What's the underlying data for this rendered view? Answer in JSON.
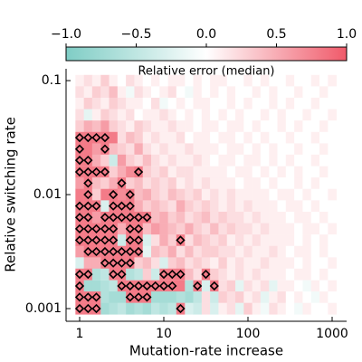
{
  "chart_data": {
    "type": "heatmap",
    "colorbar_label": "Relative error (median)",
    "xlabel": "Mutation-rate increase",
    "ylabel": "Relative switching rate",
    "xscale": "log",
    "yscale": "log",
    "xlim": [
      0.69,
      1486
    ],
    "ylim": [
      0.000774,
      0.127
    ],
    "xticks": [
      1,
      10,
      100,
      1000
    ],
    "yticks": [
      0.001,
      0.01,
      0.1
    ],
    "clim": [
      -1,
      1
    ],
    "cticks": [
      {
        "value": -1,
        "label": "−1.0"
      },
      {
        "value": -0.5,
        "label": "−0.5"
      },
      {
        "value": 0,
        "label": "0.0"
      },
      {
        "value": 0.5,
        "label": "0.5"
      },
      {
        "value": 1,
        "label": "1.0"
      }
    ],
    "colormap": [
      "#7fcdc5",
      "#ffffff",
      "#f05a6a"
    ],
    "x": [
      1,
      1.26,
      1.58,
      2,
      2.51,
      3.16,
      3.98,
      5.01,
      6.31,
      7.94,
      10,
      12.6,
      15.8,
      20,
      25.1,
      31.6,
      39.8,
      50.1,
      63.1,
      79.4,
      100,
      126,
      158,
      200,
      251,
      316,
      398,
      501,
      631,
      794,
      1000
    ],
    "y": [
      0.1,
      0.0794,
      0.0631,
      0.0501,
      0.0398,
      0.0316,
      0.0251,
      0.02,
      0.0158,
      0.0126,
      0.01,
      0.00794,
      0.00631,
      0.00501,
      0.00398,
      0.00316,
      0.00251,
      0.002,
      0.00158,
      0.00126,
      0.001
    ],
    "z": [
      [
        0.1,
        0.2,
        0.1,
        0.3,
        0.1,
        0,
        0.2,
        0.1,
        0,
        0.1,
        0,
        0.1,
        0.1,
        0,
        0.1,
        0,
        0.1,
        0.1,
        0,
        0,
        0.1,
        0,
        0.1,
        0,
        0,
        0.1,
        0,
        0,
        0.1,
        0,
        0.1
      ],
      [
        0.2,
        0.1,
        0.3,
        0.2,
        0.4,
        0.1,
        -0.1,
        0.2,
        0.1,
        0,
        0.1,
        0.2,
        0,
        -0.1,
        0.1,
        0,
        0.1,
        0,
        0.1,
        0,
        0,
        0.1,
        0,
        0.1,
        0,
        0,
        0.1,
        0,
        0,
        0.1,
        0
      ],
      [
        0.1,
        0.3,
        0.2,
        0.1,
        0.3,
        0.2,
        0.1,
        0.1,
        0,
        0.2,
        -0.1,
        0,
        0.1,
        0,
        0.1,
        0.1,
        0,
        0,
        0.1,
        0,
        0.1,
        0,
        0,
        0.1,
        0,
        0.1,
        0,
        0,
        0.1,
        0,
        0
      ],
      [
        0.2,
        -0.2,
        0.1,
        0.3,
        0.2,
        0.1,
        0.2,
        0,
        0.1,
        0.1,
        0.2,
        0.1,
        0,
        0.1,
        0,
        0.1,
        0,
        0.1,
        0,
        0.1,
        0,
        0,
        0.1,
        0,
        0.1,
        0,
        0,
        0.1,
        0,
        0,
        0.1
      ],
      [
        0.3,
        0.5,
        0.4,
        0.6,
        0.3,
        0.2,
        0.1,
        0.3,
        0.2,
        0.1,
        0.1,
        0.2,
        0.1,
        0.1,
        0,
        0.1,
        0.1,
        0,
        0.1,
        0.1,
        0,
        0.1,
        0,
        0,
        0.1,
        0,
        0.1,
        0,
        0,
        0.1,
        0
      ],
      [
        0.8,
        0.8,
        0.8,
        0.8,
        0.8,
        0.2,
        0.4,
        0.3,
        0.1,
        0.2,
        0.1,
        0.1,
        0.2,
        0,
        0.1,
        0.1,
        0,
        0.1,
        0.1,
        0,
        0.1,
        0,
        0.1,
        0,
        0,
        0.1,
        0,
        0,
        0.1,
        0,
        0
      ],
      [
        0.8,
        0.8,
        0.6,
        0.8,
        0.4,
        0.3,
        0.2,
        0.5,
        0.2,
        0.1,
        0.2,
        0.1,
        0.1,
        0.2,
        0.1,
        0.1,
        0.1,
        0,
        0.1,
        0.1,
        0,
        0.1,
        0,
        0.1,
        0,
        0,
        0.1,
        0,
        0,
        0.1,
        0
      ],
      [
        0.8,
        0.8,
        0.5,
        0.3,
        -0.4,
        0.6,
        0.3,
        0.2,
        0.4,
        0.2,
        0.1,
        0.2,
        0.1,
        0.1,
        0.2,
        0.1,
        0,
        0.1,
        0.1,
        0,
        0.1,
        0.1,
        0,
        0.1,
        0,
        0.1,
        0,
        0,
        0.1,
        0,
        0
      ],
      [
        0.8,
        0.8,
        0.8,
        0.8,
        0.3,
        0.5,
        0.7,
        0.8,
        0.3,
        0.2,
        0.3,
        0.1,
        0.2,
        0.2,
        0.1,
        0.1,
        0.1,
        0.1,
        0,
        0.1,
        0.1,
        0,
        0.1,
        0,
        0.1,
        0,
        0.1,
        0,
        0,
        0.1,
        0
      ],
      [
        0.6,
        0.8,
        0.4,
        0.3,
        0.5,
        0.8,
        0.3,
        0.4,
        0.2,
        0.3,
        0.2,
        0.3,
        0.1,
        0.2,
        0.1,
        0.2,
        0.1,
        0.1,
        0.1,
        0,
        0.1,
        0.1,
        0,
        0.1,
        0,
        0,
        0.1,
        0,
        0.1,
        0,
        0
      ],
      [
        0.8,
        0.8,
        0.3,
        0.8,
        0.8,
        0.7,
        0.8,
        0.4,
        0.5,
        0.3,
        0.2,
        0.4,
        0.3,
        0.2,
        0.3,
        0.1,
        0.2,
        0.1,
        0.2,
        0.1,
        0.1,
        0.1,
        0.1,
        0,
        0.1,
        0.1,
        0,
        0.1,
        0,
        0,
        0.1
      ],
      [
        0.8,
        0.8,
        0.8,
        -0.3,
        0.8,
        0.8,
        0.8,
        0.5,
        0.3,
        0.4,
        0.3,
        0.2,
        0.5,
        0.3,
        0.2,
        0.3,
        0.2,
        0.1,
        0.2,
        0.1,
        0.2,
        0.1,
        0.1,
        0.1,
        0,
        0.1,
        0.1,
        0,
        0.1,
        0,
        0
      ],
      [
        0.8,
        0.8,
        0.6,
        0.8,
        0.8,
        0.8,
        0.8,
        0.8,
        0.8,
        0.4,
        0.5,
        0.3,
        0.4,
        0.2,
        0.3,
        0.4,
        0.2,
        0.3,
        0.2,
        0.2,
        0.1,
        0.2,
        0.1,
        0.1,
        0.1,
        0,
        0.1,
        0.1,
        0,
        0.1,
        0
      ],
      [
        0.8,
        0.8,
        0.8,
        0.8,
        0.8,
        0.5,
        0.8,
        0.8,
        0.4,
        0.6,
        0.5,
        0.4,
        0.3,
        0.5,
        0.3,
        0.2,
        0.4,
        0.2,
        0.3,
        0.2,
        0.2,
        0.1,
        0.2,
        0.1,
        0.1,
        0.1,
        0,
        0.1,
        0.1,
        0,
        0.1
      ],
      [
        0.8,
        0.8,
        0.8,
        0.8,
        0.8,
        -0.4,
        0.8,
        0.8,
        -0.3,
        0.2,
        0.5,
        0.3,
        0.8,
        0.2,
        0.4,
        0.3,
        0.2,
        0.3,
        0.1,
        0.2,
        0.1,
        0.2,
        0.1,
        0.1,
        0.1,
        0.1,
        0,
        0.1,
        0,
        0.1,
        0
      ],
      [
        0.6,
        0.8,
        0.8,
        0.8,
        0.8,
        0.8,
        0.8,
        0.8,
        -0.2,
        0.4,
        0.3,
        0.5,
        0.2,
        0.4,
        0.2,
        0.3,
        0.3,
        0.2,
        0.2,
        0.1,
        0.2,
        0.1,
        0.1,
        0.2,
        0.1,
        0,
        0.1,
        0.1,
        0,
        0.1,
        0
      ],
      [
        -0.3,
        0.5,
        0.5,
        0.8,
        0.8,
        0.8,
        0.8,
        0.3,
        0.4,
        0.2,
        -0.3,
        0.3,
        0.4,
        0.2,
        0.3,
        0.2,
        0.1,
        0.3,
        0.1,
        0.2,
        0.1,
        0.1,
        0.2,
        0.1,
        0.1,
        0.1,
        0,
        0.1,
        0,
        0,
        0.1
      ],
      [
        0.8,
        0.8,
        -0.6,
        -0.5,
        0.8,
        0.8,
        -0.6,
        -0.5,
        0.3,
        -0.4,
        0.8,
        0.8,
        0.8,
        0.4,
        0.2,
        0.8,
        0.3,
        0.2,
        0.1,
        0.2,
        0.1,
        0.2,
        0.1,
        0.1,
        0.1,
        0,
        0.1,
        0.1,
        0,
        0.1,
        0
      ],
      [
        0.8,
        -0.7,
        -0.7,
        -0.6,
        -0.5,
        0.8,
        0.8,
        0.8,
        0.8,
        0.8,
        0.8,
        0.8,
        0.8,
        -0.6,
        0.8,
        -0.3,
        0.8,
        0.2,
        0.3,
        -0.2,
        0.2,
        0.1,
        0.2,
        -0.2,
        0.1,
        0.1,
        0,
        -0.1,
        0.1,
        0,
        0.1
      ],
      [
        0.8,
        0.8,
        0.8,
        -0.6,
        -0.7,
        -0.7,
        0.8,
        0.8,
        0.8,
        -0.7,
        -0.7,
        -0.7,
        -0.6,
        -0.7,
        -0.5,
        0.2,
        -0.4,
        0.3,
        0.2,
        0.3,
        0.1,
        0.2,
        -0.2,
        0.1,
        0.2,
        0,
        0.1,
        0,
        -0.1,
        0.1,
        0
      ],
      [
        0.8,
        0.8,
        0.8,
        -0.7,
        -0.6,
        -0.5,
        -0.7,
        -0.6,
        -0.7,
        -0.5,
        -0.6,
        -0.5,
        0.8,
        -0.3,
        -0.4,
        0.2,
        -0.3,
        0.1,
        0.2,
        -0.2,
        0.3,
        0.1,
        -0.1,
        0.2,
        0.1,
        0,
        -0.1,
        0.1,
        0,
        0,
        0.1
      ]
    ],
    "significant": [
      [
        0,
        5
      ],
      [
        1,
        5
      ],
      [
        2,
        5
      ],
      [
        3,
        5
      ],
      [
        0,
        6
      ],
      [
        3,
        6
      ],
      [
        0,
        7
      ],
      [
        1,
        7
      ],
      [
        0,
        8
      ],
      [
        1,
        8
      ],
      [
        2,
        8
      ],
      [
        3,
        8
      ],
      [
        7,
        8
      ],
      [
        1,
        9
      ],
      [
        5,
        9
      ],
      [
        1,
        10
      ],
      [
        4,
        10
      ],
      [
        6,
        10
      ],
      [
        0,
        11
      ],
      [
        1,
        11
      ],
      [
        2,
        11
      ],
      [
        4,
        11
      ],
      [
        5,
        11
      ],
      [
        6,
        11
      ],
      [
        0,
        12
      ],
      [
        1,
        12
      ],
      [
        3,
        12
      ],
      [
        4,
        12
      ],
      [
        5,
        12
      ],
      [
        6,
        12
      ],
      [
        7,
        12
      ],
      [
        8,
        12
      ],
      [
        0,
        13
      ],
      [
        1,
        13
      ],
      [
        2,
        13
      ],
      [
        3,
        13
      ],
      [
        4,
        13
      ],
      [
        6,
        13
      ],
      [
        7,
        13
      ],
      [
        0,
        14
      ],
      [
        1,
        14
      ],
      [
        2,
        14
      ],
      [
        3,
        14
      ],
      [
        4,
        14
      ],
      [
        6,
        14
      ],
      [
        7,
        14
      ],
      [
        12,
        14
      ],
      [
        1,
        15
      ],
      [
        2,
        15
      ],
      [
        3,
        15
      ],
      [
        4,
        15
      ],
      [
        5,
        15
      ],
      [
        6,
        15
      ],
      [
        7,
        15
      ],
      [
        3,
        16
      ],
      [
        4,
        16
      ],
      [
        5,
        16
      ],
      [
        6,
        16
      ],
      [
        0,
        17
      ],
      [
        1,
        17
      ],
      [
        4,
        17
      ],
      [
        5,
        17
      ],
      [
        10,
        17
      ],
      [
        11,
        17
      ],
      [
        12,
        17
      ],
      [
        15,
        17
      ],
      [
        0,
        18
      ],
      [
        5,
        18
      ],
      [
        6,
        18
      ],
      [
        7,
        18
      ],
      [
        8,
        18
      ],
      [
        9,
        18
      ],
      [
        10,
        18
      ],
      [
        11,
        18
      ],
      [
        14,
        18
      ],
      [
        16,
        18
      ],
      [
        0,
        19
      ],
      [
        1,
        19
      ],
      [
        2,
        19
      ],
      [
        6,
        19
      ],
      [
        7,
        19
      ],
      [
        8,
        19
      ],
      [
        0,
        20
      ],
      [
        1,
        20
      ],
      [
        2,
        20
      ],
      [
        12,
        20
      ]
    ]
  }
}
